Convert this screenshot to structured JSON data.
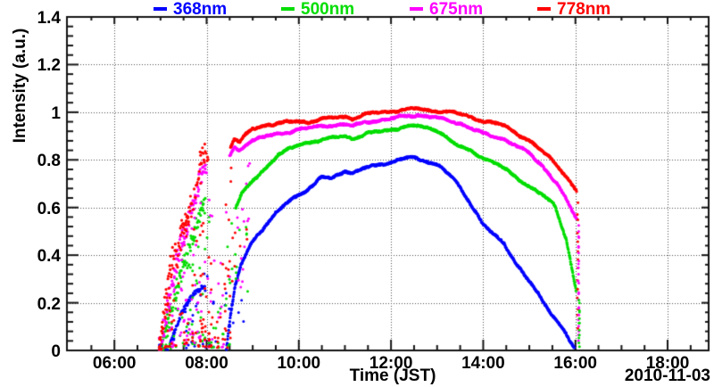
{
  "chart_data": {
    "type": "scatter",
    "title": "",
    "xlabel": "Time (JST)",
    "ylabel": "Intensity (a.u.)",
    "date_annotation": "2010-11-03",
    "x_axis_range_hours": [
      4.97,
      18.89
    ],
    "ylim": [
      0,
      1.4
    ],
    "x_major_ticks": [
      6,
      8,
      10,
      12,
      14,
      16,
      18
    ],
    "x_tick_labels": [
      "06:00",
      "08:00",
      "10:00",
      "12:00",
      "14:00",
      "16:00",
      "18:00"
    ],
    "x_minor_step_hours": 0.5,
    "y_major_ticks": [
      0,
      0.2,
      0.4,
      0.6,
      0.8,
      1,
      1.2,
      1.4
    ],
    "y_tick_labels": [
      "0",
      "0.2",
      "0.4",
      "0.6",
      "0.8",
      "1",
      "1.2",
      "1.4"
    ],
    "y_minor_step": 0.04,
    "grid": "dotted",
    "legend_position": "top",
    "legend": [
      {
        "label": "368nm",
        "color": "#0000ff"
      },
      {
        "label": "500nm",
        "color": "#00dd00"
      },
      {
        "label": "675nm",
        "color": "#ff00ff"
      },
      {
        "label": "778nm",
        "color": "#ff0000"
      }
    ],
    "series": [
      {
        "name": "368nm",
        "color": "#0000ff",
        "main": [
          [
            8.43,
            0.01
          ],
          [
            8.5,
            0.12
          ],
          [
            8.62,
            0.27
          ],
          [
            8.75,
            0.36
          ],
          [
            8.87,
            0.41
          ],
          [
            9.0,
            0.46
          ],
          [
            9.25,
            0.52
          ],
          [
            9.55,
            0.585
          ],
          [
            9.75,
            0.62
          ],
          [
            10.0,
            0.655
          ],
          [
            10.3,
            0.69
          ],
          [
            10.5,
            0.73
          ],
          [
            10.7,
            0.72
          ],
          [
            11.0,
            0.755
          ],
          [
            11.17,
            0.745
          ],
          [
            11.5,
            0.77
          ],
          [
            11.75,
            0.78
          ],
          [
            12.0,
            0.79
          ],
          [
            12.25,
            0.805
          ],
          [
            12.45,
            0.81
          ],
          [
            12.6,
            0.8
          ],
          [
            12.8,
            0.795
          ],
          [
            13.05,
            0.775
          ],
          [
            13.3,
            0.73
          ],
          [
            13.4,
            0.71
          ],
          [
            13.7,
            0.625
          ],
          [
            14.0,
            0.53
          ],
          [
            14.2,
            0.49
          ],
          [
            14.45,
            0.45
          ],
          [
            14.7,
            0.37
          ],
          [
            15.0,
            0.29
          ],
          [
            15.35,
            0.19
          ],
          [
            15.6,
            0.125
          ],
          [
            15.8,
            0.07
          ],
          [
            15.98,
            0.005
          ]
        ],
        "noisy": [
          [
            7.2,
            0.025
          ],
          [
            7.33,
            0.095
          ],
          [
            7.45,
            0.155
          ],
          [
            7.6,
            0.205
          ],
          [
            7.75,
            0.245
          ],
          [
            7.9,
            0.265
          ],
          [
            7.97,
            0.26
          ]
        ],
        "noisy_jitter": 0.01,
        "noisy_drop": 0.04
      },
      {
        "name": "500nm",
        "color": "#00dd00",
        "main": [
          [
            8.63,
            0.6
          ],
          [
            8.75,
            0.655
          ],
          [
            9.0,
            0.71
          ],
          [
            9.22,
            0.755
          ],
          [
            9.4,
            0.79
          ],
          [
            9.55,
            0.823
          ],
          [
            9.8,
            0.845
          ],
          [
            10.0,
            0.862
          ],
          [
            10.3,
            0.878
          ],
          [
            10.55,
            0.885
          ],
          [
            10.8,
            0.895
          ],
          [
            11.0,
            0.9
          ],
          [
            11.17,
            0.89
          ],
          [
            11.5,
            0.912
          ],
          [
            11.8,
            0.92
          ],
          [
            12.0,
            0.927
          ],
          [
            12.3,
            0.94
          ],
          [
            12.6,
            0.942
          ],
          [
            12.85,
            0.932
          ],
          [
            13.1,
            0.915
          ],
          [
            13.35,
            0.868
          ],
          [
            13.7,
            0.84
          ],
          [
            14.0,
            0.81
          ],
          [
            14.45,
            0.765
          ],
          [
            15.0,
            0.688
          ],
          [
            15.3,
            0.65
          ],
          [
            15.55,
            0.61
          ],
          [
            15.8,
            0.47
          ],
          [
            16.02,
            0.245
          ]
        ],
        "noisy": [
          [
            7.0,
            0.01
          ],
          [
            7.13,
            0.1
          ],
          [
            7.27,
            0.2
          ],
          [
            7.4,
            0.3
          ],
          [
            7.53,
            0.38
          ],
          [
            7.67,
            0.46
          ],
          [
            7.8,
            0.54
          ],
          [
            7.9,
            0.59
          ],
          [
            7.97,
            0.615
          ]
        ],
        "noisy_jitter": 0.04,
        "noisy_drop": 0.13
      },
      {
        "name": "675nm",
        "color": "#ff00ff",
        "main": [
          [
            8.5,
            0.815
          ],
          [
            8.6,
            0.85
          ],
          [
            8.72,
            0.835
          ],
          [
            8.85,
            0.865
          ],
          [
            9.0,
            0.885
          ],
          [
            9.3,
            0.9
          ],
          [
            9.55,
            0.906
          ],
          [
            9.8,
            0.918
          ],
          [
            10.0,
            0.93
          ],
          [
            10.5,
            0.94
          ],
          [
            10.8,
            0.947
          ],
          [
            11.0,
            0.95
          ],
          [
            11.17,
            0.942
          ],
          [
            11.5,
            0.96
          ],
          [
            12.0,
            0.973
          ],
          [
            12.3,
            0.983
          ],
          [
            12.6,
            0.988
          ],
          [
            12.9,
            0.98
          ],
          [
            13.2,
            0.968
          ],
          [
            13.5,
            0.953
          ],
          [
            14.0,
            0.91
          ],
          [
            14.45,
            0.888
          ],
          [
            15.0,
            0.828
          ],
          [
            15.3,
            0.772
          ],
          [
            15.6,
            0.7
          ],
          [
            15.82,
            0.625
          ],
          [
            16.03,
            0.55
          ]
        ],
        "noisy": [
          [
            6.97,
            0.01
          ],
          [
            7.1,
            0.12
          ],
          [
            7.23,
            0.27
          ],
          [
            7.33,
            0.35
          ],
          [
            7.43,
            0.44
          ],
          [
            7.53,
            0.5
          ],
          [
            7.63,
            0.55
          ],
          [
            7.73,
            0.62
          ],
          [
            7.83,
            0.7
          ],
          [
            7.93,
            0.765
          ],
          [
            8.0,
            0.78
          ]
        ],
        "noisy_jitter": 0.045,
        "noisy_drop": 0.13
      },
      {
        "name": "778nm",
        "color": "#ff0000",
        "main": [
          [
            8.52,
            0.855
          ],
          [
            8.6,
            0.89
          ],
          [
            8.72,
            0.875
          ],
          [
            8.85,
            0.905
          ],
          [
            9.0,
            0.93
          ],
          [
            9.25,
            0.945
          ],
          [
            9.55,
            0.954
          ],
          [
            9.8,
            0.958
          ],
          [
            10.0,
            0.963
          ],
          [
            10.2,
            0.957
          ],
          [
            10.45,
            0.972
          ],
          [
            10.7,
            0.975
          ],
          [
            11.0,
            0.982
          ],
          [
            11.17,
            0.973
          ],
          [
            11.4,
            0.99
          ],
          [
            11.7,
            0.998
          ],
          [
            12.0,
            1.004
          ],
          [
            12.3,
            1.012
          ],
          [
            12.55,
            1.015
          ],
          [
            12.8,
            1.008
          ],
          [
            13.1,
            1.004
          ],
          [
            13.35,
            0.998
          ],
          [
            13.7,
            0.982
          ],
          [
            14.0,
            0.963
          ],
          [
            14.45,
            0.945
          ],
          [
            15.0,
            0.88
          ],
          [
            15.5,
            0.8
          ],
          [
            15.75,
            0.745
          ],
          [
            16.03,
            0.665
          ]
        ],
        "noisy": [
          [
            6.97,
            0.02
          ],
          [
            7.08,
            0.16
          ],
          [
            7.2,
            0.33
          ],
          [
            7.3,
            0.42
          ],
          [
            7.37,
            0.38
          ],
          [
            7.47,
            0.52
          ],
          [
            7.57,
            0.57
          ],
          [
            7.63,
            0.6
          ],
          [
            7.7,
            0.62
          ],
          [
            7.77,
            0.7
          ],
          [
            7.85,
            0.78
          ],
          [
            7.92,
            0.82
          ],
          [
            7.98,
            0.845
          ],
          [
            8.05,
            0.82
          ]
        ],
        "noisy_jitter": 0.05,
        "noisy_drop": 0.14
      }
    ],
    "scatter": {
      "morning_outliers": {
        "t_range": [
          6.96,
          8.12
        ],
        "counts": [
          26,
          55,
          60,
          66
        ]
      },
      "bottom_band": {
        "t_range": [
          7.82,
          8.52
        ],
        "counts": [
          12,
          20,
          16,
          38
        ],
        "v_max": 0.38
      },
      "cluster_b_outliers": {
        "t_range": [
          8.4,
          8.95
        ],
        "counts": [
          6,
          14,
          16,
          14
        ]
      },
      "sunset_columns": [
        {
          "series": 3,
          "t": 16.05,
          "v_top": 0.62,
          "v_bottom": 0.1,
          "count": 14
        },
        {
          "series": 2,
          "t": 16.07,
          "v_top": 0.53,
          "v_bottom": 0.04,
          "count": 24
        },
        {
          "series": 1,
          "t": 16.08,
          "v_top": 0.21,
          "v_bottom": 0.02,
          "count": 12
        }
      ]
    }
  }
}
